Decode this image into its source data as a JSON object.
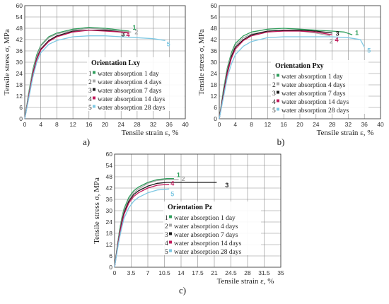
{
  "chart_data": [
    {
      "id": "a",
      "panel_label": "a)",
      "type": "line",
      "title": "Orientation Lxy",
      "xlabel": "Tensile strain ε, %",
      "ylabel": "Tensile stress σ, MPa",
      "xlim": [
        0,
        40
      ],
      "ylim": [
        0,
        60
      ],
      "x_ticks": [
        0,
        4,
        8,
        12,
        16,
        20,
        24,
        28,
        32,
        36,
        40
      ],
      "y_ticks": [
        0,
        6,
        12,
        18,
        24,
        30,
        36,
        42,
        48,
        54,
        60
      ],
      "grid": true,
      "legend_position": "right-middle",
      "series": [
        {
          "number": "1",
          "name": "water absorption 1 day",
          "color": "#2e9e5b",
          "x": [
            0,
            1,
            2,
            3,
            4,
            6,
            8,
            12,
            16,
            20,
            24,
            26
          ],
          "y": [
            0,
            14,
            26,
            34,
            39,
            43.5,
            45.5,
            47.5,
            48.5,
            48,
            47,
            46.5
          ]
        },
        {
          "number": "2",
          "name": "water absorption 4 days",
          "color": "#a9a9a9",
          "x": [
            0,
            1,
            2,
            3,
            4,
            6,
            8,
            12,
            16,
            20,
            24,
            26.5
          ],
          "y": [
            0,
            13,
            25,
            33,
            38.5,
            43,
            45,
            47,
            48,
            47.5,
            46.5,
            46
          ]
        },
        {
          "number": "3",
          "name": "water absorption 7 days",
          "color": "#1a1a1a",
          "x": [
            0,
            1,
            2,
            3,
            4,
            6,
            8,
            12,
            16,
            20,
            24,
            26
          ],
          "y": [
            0,
            12,
            24,
            32,
            37,
            41.5,
            44,
            46.5,
            47,
            47,
            46,
            45.5
          ]
        },
        {
          "number": "4",
          "name": "water absorption 14 days",
          "color": "#c2185b",
          "x": [
            0,
            1,
            2,
            3,
            4,
            6,
            8,
            12,
            16,
            20,
            24,
            26
          ],
          "y": [
            0,
            12,
            23.5,
            31.5,
            36.5,
            41,
            43.5,
            46,
            47,
            46.5,
            46,
            45.5
          ]
        },
        {
          "number": "5",
          "name": "water absorption 28 days",
          "color": "#7ec8e3",
          "x": [
            0,
            1,
            2,
            3,
            4,
            6,
            8,
            12,
            16,
            20,
            24,
            28,
            32,
            35
          ],
          "y": [
            0,
            11,
            22,
            30,
            35,
            39.5,
            41.5,
            43.5,
            44,
            44,
            43.5,
            43,
            42.5,
            41.5
          ]
        }
      ]
    },
    {
      "id": "b",
      "panel_label": "b)",
      "type": "line",
      "title": "Orientation Pxy",
      "xlabel": "Tensile strain ε, %",
      "ylabel": "Tensile stress σ, MPa",
      "xlim": [
        0,
        40
      ],
      "ylim": [
        0,
        60
      ],
      "x_ticks": [
        0,
        4,
        8,
        12,
        16,
        20,
        24,
        28,
        32,
        36,
        40
      ],
      "y_ticks": [
        0,
        6,
        12,
        18,
        24,
        30,
        36,
        42,
        48,
        54,
        60
      ],
      "grid": true,
      "legend_position": "right-middle",
      "series": [
        {
          "number": "1",
          "name": "water absorption 1 day",
          "color": "#2e9e5b",
          "x": [
            0,
            1,
            2,
            3,
            4,
            6,
            8,
            12,
            16,
            20,
            24,
            28,
            31,
            33
          ],
          "y": [
            0,
            15,
            27,
            35,
            40,
            44,
            46,
            47.5,
            48,
            47.5,
            47,
            46.5,
            46,
            44.5
          ]
        },
        {
          "number": "2",
          "name": "water absorption 4 days",
          "color": "#a9a9a9",
          "x": [
            0,
            1,
            2,
            3,
            4,
            6,
            8,
            12,
            16,
            20,
            24,
            27.5
          ],
          "y": [
            0,
            14,
            26,
            34,
            39,
            43,
            45,
            46.5,
            47,
            46.5,
            45.5,
            44
          ]
        },
        {
          "number": "3",
          "name": "water absorption 7 days",
          "color": "#1a1a1a",
          "x": [
            0,
            1,
            2,
            3,
            4,
            6,
            8,
            12,
            16,
            20,
            24,
            28
          ],
          "y": [
            0,
            13,
            25,
            33,
            38,
            42,
            44.5,
            46.5,
            47,
            47,
            46.5,
            45.5
          ]
        },
        {
          "number": "4",
          "name": "water absorption 14 days",
          "color": "#c2185b",
          "x": [
            0,
            1,
            2,
            3,
            4,
            6,
            8,
            12,
            16,
            20,
            24,
            28
          ],
          "y": [
            0,
            12,
            24,
            32,
            37,
            41.5,
            44,
            46,
            46.5,
            46.5,
            46,
            44.5
          ]
        },
        {
          "number": "5",
          "name": "water absorption 28 days",
          "color": "#7ec8e3",
          "x": [
            0,
            1,
            2,
            3,
            4,
            6,
            8,
            12,
            16,
            20,
            24,
            28,
            32,
            35,
            36
          ],
          "y": [
            0,
            11,
            22,
            29,
            34,
            38.5,
            41,
            43,
            43.5,
            43.5,
            43.5,
            43.5,
            43,
            42,
            38
          ]
        }
      ]
    },
    {
      "id": "c",
      "panel_label": "c)",
      "type": "line",
      "title": "Orientation Pz",
      "xlabel": "Tensile strain ε, %",
      "ylabel": "Tensile stress σ, MPa",
      "xlim": [
        0,
        35
      ],
      "ylim": [
        0,
        60
      ],
      "x_ticks": [
        0,
        3.5,
        7,
        10.5,
        14,
        17.5,
        21,
        24.5,
        28,
        31.5,
        35
      ],
      "y_ticks": [
        0,
        6,
        12,
        18,
        24,
        30,
        36,
        42,
        48,
        54,
        60
      ],
      "grid": true,
      "legend_position": "right-middle",
      "series": [
        {
          "number": "1",
          "name": "water absorption 1 day",
          "color": "#2e9e5b",
          "x": [
            0,
            0.5,
            1,
            1.5,
            2,
            3,
            4,
            5,
            7,
            9,
            11,
            12.5
          ],
          "y": [
            0,
            10,
            19,
            26,
            31,
            37,
            40.5,
            42.5,
            45,
            46.5,
            47,
            47
          ]
        },
        {
          "number": "2",
          "name": "water absorption 4 days",
          "color": "#a9a9a9",
          "x": [
            0,
            0.5,
            1,
            1.5,
            2,
            3,
            4,
            5,
            7,
            9,
            11,
            13.5
          ],
          "y": [
            0,
            9.5,
            18,
            25,
            30,
            36,
            39.5,
            41.5,
            44.5,
            46,
            46.5,
            46.5
          ]
        },
        {
          "number": "3",
          "name": "water absorption 7 days",
          "color": "#1a1a1a",
          "x": [
            0,
            0.5,
            1,
            1.5,
            2,
            3,
            4,
            5,
            7,
            9,
            11,
            14,
            18,
            21.5
          ],
          "y": [
            0,
            9,
            17,
            24,
            29,
            35,
            38.5,
            40.5,
            43,
            44.5,
            45,
            45,
            45,
            45
          ]
        },
        {
          "number": "4",
          "name": "water absorption 14 days",
          "color": "#c2185b",
          "x": [
            0,
            0.5,
            1,
            1.5,
            2,
            3,
            4,
            5,
            7,
            9,
            11.5
          ],
          "y": [
            0,
            8.5,
            16.5,
            23,
            28,
            34,
            37.5,
            39.5,
            42,
            43.5,
            44
          ]
        },
        {
          "number": "5",
          "name": "water absorption 28 days",
          "color": "#7ec8e3",
          "x": [
            0,
            0.5,
            1,
            1.5,
            2,
            3,
            4,
            5,
            7,
            9,
            11.5
          ],
          "y": [
            0,
            8,
            15,
            21,
            26,
            31.5,
            35,
            37,
            39.5,
            41,
            41.5
          ]
        }
      ]
    }
  ]
}
